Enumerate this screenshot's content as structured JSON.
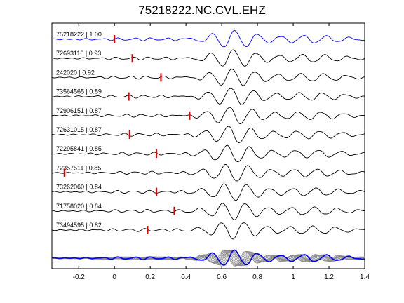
{
  "chart_data": {
    "type": "line",
    "title": "75218222.NC.CVL.EHZ",
    "xlim": [
      -0.35,
      1.4
    ],
    "x_ticks": [
      -0.2,
      0,
      0.2,
      0.4,
      0.6,
      0.8,
      1,
      1.2,
      1.4
    ],
    "x_tick_labels": [
      "-0.2",
      "0",
      "0.2",
      "0.4",
      "0.6",
      "0.8",
      "1",
      "1.2",
      "1.4"
    ],
    "xlabel": "",
    "ylabel": "",
    "grid": false,
    "legend": "none",
    "reference_color": "#0000ff",
    "trace_color": "#000000",
    "marker_color": "#e00000",
    "stack_color": "#888888",
    "traces": [
      {
        "label": "75218222 | 1.00",
        "pick_time": 0.0,
        "reference": true
      },
      {
        "label": "72693116 | 0.93",
        "pick_time": 0.1
      },
      {
        "label": "242020 | 0.92",
        "pick_time": 0.26
      },
      {
        "label": "73564565 | 0.89",
        "pick_time": 0.08
      },
      {
        "label": "72906151 | 0.87",
        "pick_time": 0.42
      },
      {
        "label": "72631015 | 0.87",
        "pick_time": 0.085
      },
      {
        "label": "72295841 | 0.85",
        "pick_time": 0.235
      },
      {
        "label": "72357511 | 0.85",
        "pick_time": -0.28
      },
      {
        "label": "73262060 | 0.84",
        "pick_time": 0.235
      },
      {
        "label": "71758020 | 0.84",
        "pick_time": 0.335
      },
      {
        "label": "73494595 | 0.82",
        "pick_time": 0.185
      }
    ]
  }
}
